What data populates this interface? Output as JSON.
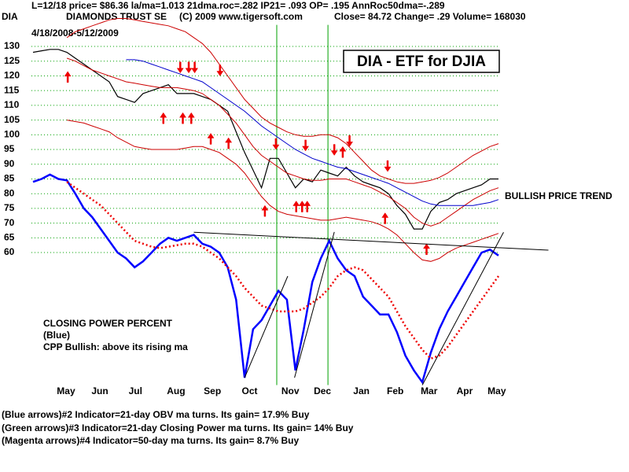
{
  "chart_data": {
    "type": "line",
    "title": "DIA - ETF for DJIA",
    "header": "L=12/18  price= $86.36  la/ma=1.013 21dma.roc=.282 IP21= .093 OP= .195 AnnRoc50dma=-.289",
    "symbol": "DIA",
    "name": "DIAMONDS TRUST SE",
    "copyright": "(C) 2009 www.tigersoft.com",
    "quote": "Close=  84.72  Change= .29 Volume= 168030",
    "date_range": "4/18/2008-5/12/2009",
    "annotations": [
      "BULLISH PRICE TREND",
      "CLOSING POWER PERCENT",
      "(Blue)",
      "CPP Bullish: above its rising ma"
    ],
    "notes": [
      "(Blue arrows)#2 Indicator=21-day OBV ma turns. Its gain= 17.9% Buy",
      "(Green arrows)#3 Indicator=21-day Closing Power ma turns. Its gain= 14% Buy",
      "(Magenta arrows)#4 Indicator=50-day ma turns. Its gain= 8.7% Buy"
    ],
    "x": [
      0,
      1,
      2,
      3,
      4,
      5,
      6,
      7,
      8,
      9,
      10,
      11,
      12,
      13,
      14,
      15,
      16,
      17,
      18,
      19,
      20,
      21,
      22,
      23,
      24,
      25,
      26,
      27,
      28,
      29,
      30,
      31,
      32,
      33,
      34,
      35,
      36,
      37,
      38,
      39,
      40,
      41,
      42,
      43,
      44,
      45,
      46,
      47,
      48,
      49,
      50,
      51,
      52,
      53,
      54,
      55
    ],
    "xlim": [
      0,
      55
    ],
    "xticks": [
      {
        "value": 3.9,
        "label": "May"
      },
      {
        "value": 7.9,
        "label": "Jun"
      },
      {
        "value": 12.1,
        "label": "Jul"
      },
      {
        "value": 16.9,
        "label": "Aug"
      },
      {
        "value": 21.2,
        "label": "Sep"
      },
      {
        "value": 25.6,
        "label": "Oct"
      },
      {
        "value": 30.4,
        "label": "Nov"
      },
      {
        "value": 34.2,
        "label": "Dec"
      },
      {
        "value": 38.8,
        "label": "Jan"
      },
      {
        "value": 42.8,
        "label": "Feb"
      },
      {
        "value": 46.8,
        "label": "Mar"
      },
      {
        "value": 51.0,
        "label": "Apr"
      },
      {
        "value": 54.8,
        "label": "May"
      }
    ],
    "ylim": [
      15,
      140
    ],
    "yticks": [
      60,
      65,
      70,
      75,
      80,
      85,
      90,
      95,
      100,
      105,
      110,
      115,
      120,
      125,
      130
    ],
    "grid": true,
    "grid_color": "#00a000",
    "series": [
      {
        "color": "#000000",
        "values": [
          128,
          128.5,
          129,
          129,
          128,
          126,
          124,
          122,
          120,
          118,
          113,
          112,
          111,
          114,
          115,
          116,
          117,
          114,
          114,
          114,
          113,
          112,
          110,
          108,
          101,
          94,
          88,
          82,
          92,
          92,
          87,
          82,
          85,
          84,
          88,
          87,
          86,
          89,
          86,
          84,
          83,
          82,
          80,
          76,
          73,
          68,
          68,
          74,
          77,
          78,
          80,
          81,
          82,
          83,
          85,
          85
        ]
      },
      {
        "color": "#cc0000",
        "values": [
          null,
          null,
          null,
          null,
          133,
          135,
          136,
          137,
          138,
          139,
          139.5,
          139.5,
          139,
          138.5,
          138,
          137.5,
          137,
          136,
          135,
          133,
          131,
          128,
          124,
          120,
          116,
          112,
          109,
          106,
          104,
          102.5,
          101,
          100,
          99.5,
          99.5,
          100,
          100,
          99,
          97,
          94,
          91,
          88,
          86,
          85,
          84,
          83.5,
          83.5,
          84,
          84.5,
          85.5,
          87,
          89,
          91,
          93,
          94.5,
          96,
          97
        ]
      },
      {
        "color": "#cc0000",
        "values": [
          null,
          null,
          null,
          null,
          126,
          125,
          123.5,
          122,
          121,
          120,
          119,
          118,
          117.5,
          117,
          116.5,
          116,
          116,
          116,
          115.5,
          115,
          114,
          112,
          110,
          107,
          104,
          100,
          96,
          93,
          91,
          89,
          87,
          86,
          85,
          84.5,
          84.5,
          85,
          85,
          85,
          84,
          83,
          82,
          80.5,
          79,
          77,
          75,
          72,
          70,
          69,
          70,
          72,
          74,
          76,
          78,
          79.5,
          81,
          82
        ]
      },
      {
        "color": "#cc0000",
        "values": [
          null,
          null,
          null,
          null,
          105,
          104.5,
          104,
          103,
          102,
          101,
          99,
          97.5,
          96,
          95.5,
          95,
          95,
          95,
          95,
          95.5,
          96,
          96,
          95,
          94,
          92,
          90,
          87,
          83,
          79,
          76,
          74,
          73,
          72.5,
          72,
          71.5,
          71,
          71,
          71.5,
          72,
          71.5,
          71,
          70.5,
          69.5,
          68,
          66,
          63,
          60,
          57.5,
          57,
          58,
          60,
          61.5,
          62.5,
          63.5,
          64.5,
          65.5,
          66.5
        ]
      },
      {
        "color": "#0000cc",
        "values": [
          null,
          null,
          null,
          null,
          null,
          null,
          null,
          null,
          null,
          null,
          null,
          125.5,
          125.5,
          125,
          124,
          123,
          122,
          121,
          120,
          119,
          118,
          116,
          114,
          112,
          110,
          108,
          105.5,
          103,
          101,
          99,
          97,
          95,
          93.5,
          92,
          91,
          90,
          89,
          88.5,
          87.5,
          86.5,
          85.5,
          84.5,
          83.5,
          82,
          80.5,
          79,
          77.5,
          76.5,
          76,
          76,
          76,
          76,
          76,
          76.5,
          77,
          78
        ]
      },
      {
        "color": "#0000ff",
        "values": [
          84,
          85,
          86.5,
          85,
          84.5,
          80,
          75,
          72,
          68,
          64,
          60,
          58,
          55,
          57,
          60,
          63,
          65,
          64,
          65,
          66,
          63,
          62,
          60,
          55,
          44,
          17.5,
          34,
          37,
          42,
          47,
          44,
          20,
          34,
          50,
          58,
          64,
          58,
          54,
          52,
          45,
          42,
          39,
          39,
          33,
          25,
          20,
          16,
          26,
          34,
          40,
          45,
          50,
          55,
          60,
          61,
          59
        ]
      },
      {
        "color": "#ee0000",
        "line_style": "dotted",
        "values": [
          null,
          null,
          null,
          null,
          84,
          82,
          80,
          78,
          76,
          73,
          70,
          67,
          64,
          63,
          62,
          61.5,
          62,
          62.5,
          63,
          63,
          62,
          60,
          58,
          55,
          52,
          48,
          45,
          42,
          41,
          40,
          40,
          40,
          41,
          43,
          45,
          48,
          52,
          54,
          55,
          54,
          51,
          48,
          45,
          40,
          35,
          31,
          27,
          24,
          25,
          28,
          32,
          36,
          40,
          44,
          48,
          52
        ]
      }
    ],
    "signals": [
      {
        "x": 4.1,
        "y": 121.5,
        "dir": "up"
      },
      {
        "x": 15.4,
        "y": 107.5,
        "dir": "up"
      },
      {
        "x": 17.7,
        "y": 107.5,
        "dir": "up"
      },
      {
        "x": 18.7,
        "y": 107.5,
        "dir": "up"
      },
      {
        "x": 21.0,
        "y": 100.5,
        "dir": "up"
      },
      {
        "x": 23.1,
        "y": 99,
        "dir": "up"
      },
      {
        "x": 27.4,
        "y": 76,
        "dir": "up"
      },
      {
        "x": 31.1,
        "y": 77.5,
        "dir": "up"
      },
      {
        "x": 31.8,
        "y": 77.5,
        "dir": "up"
      },
      {
        "x": 32.4,
        "y": 77.5,
        "dir": "up"
      },
      {
        "x": 36.6,
        "y": 96,
        "dir": "up"
      },
      {
        "x": 41.6,
        "y": 73.5,
        "dir": "up"
      },
      {
        "x": 46.5,
        "y": 63,
        "dir": "up"
      },
      {
        "x": 17.4,
        "y": 121,
        "dir": "down"
      },
      {
        "x": 18.4,
        "y": 121,
        "dir": "down"
      },
      {
        "x": 19.1,
        "y": 121,
        "dir": "down"
      },
      {
        "x": 22.1,
        "y": 120,
        "dir": "down"
      },
      {
        "x": 28.7,
        "y": 95,
        "dir": "down"
      },
      {
        "x": 32.2,
        "y": 94.5,
        "dir": "down"
      },
      {
        "x": 35.6,
        "y": 93,
        "dir": "down"
      },
      {
        "x": 37.4,
        "y": 96,
        "dir": "down"
      },
      {
        "x": 41.9,
        "y": 87.5,
        "dir": "down"
      }
    ],
    "signal_color": "#ee0000",
    "vlines": [
      28.8,
      34.85
    ],
    "vline_color": "#00a000",
    "trendlines": [
      {
        "x": [
          19,
          60.9
        ],
        "y": [
          66.9,
          60.8
        ]
      },
      {
        "x": [
          25,
          30.1
        ],
        "y": [
          17.5,
          52
        ]
      },
      {
        "x": [
          30.9,
          35.6
        ],
        "y": [
          17.5,
          67
        ]
      },
      {
        "x": [
          46,
          55.6
        ],
        "y": [
          15,
          66.9
        ]
      }
    ],
    "trendline_color": "#000000"
  }
}
